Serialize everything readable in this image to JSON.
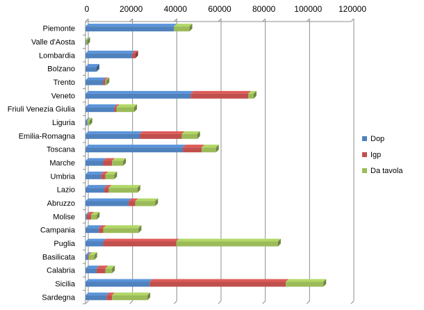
{
  "chart_data": {
    "type": "bar",
    "orientation": "horizontal",
    "stacked": true,
    "categories": [
      "Piemonte",
      "Valle d'Aosta",
      "Lombardia",
      "Bolzano",
      "Trento",
      "Veneto",
      "Friuli Venezia Giulia",
      "Liguria",
      "Emilia-Romagna",
      "Toscana",
      "Marche",
      "Umbria",
      "Lazio",
      "Abruzzo",
      "Molise",
      "Campania",
      "Puglia",
      "Basilicata",
      "Calabria",
      "Sicilia",
      "Sardegna"
    ],
    "series": [
      {
        "name": "Dop",
        "color": "#4F81BD",
        "values": [
          40000,
          300,
          21000,
          5000,
          8000,
          47500,
          13000,
          800,
          24500,
          44000,
          8000,
          7000,
          8500,
          19500,
          600,
          6000,
          8000,
          1000,
          5000,
          29000,
          9500
        ]
      },
      {
        "name": "Igp",
        "color": "#C0504D",
        "values": [
          0,
          0,
          1500,
          0,
          1000,
          26000,
          1000,
          0,
          19000,
          8500,
          4000,
          2000,
          2000,
          3000,
          2000,
          2000,
          33000,
          500,
          4000,
          61500,
          2500
        ]
      },
      {
        "name": "Da tavola",
        "color": "#9BBB59",
        "values": [
          7000,
          500,
          0,
          0,
          500,
          2500,
          8000,
          1000,
          7000,
          6500,
          5000,
          4000,
          13000,
          9000,
          2500,
          16000,
          46000,
          2500,
          3000,
          17000,
          16000
        ]
      }
    ],
    "xlim": [
      0,
      120000
    ],
    "xticks": [
      "0",
      "20000",
      "40000",
      "60000",
      "80000",
      "100000",
      "120000"
    ],
    "xaxis_position": "top",
    "grid": true,
    "legend_position": "right"
  }
}
